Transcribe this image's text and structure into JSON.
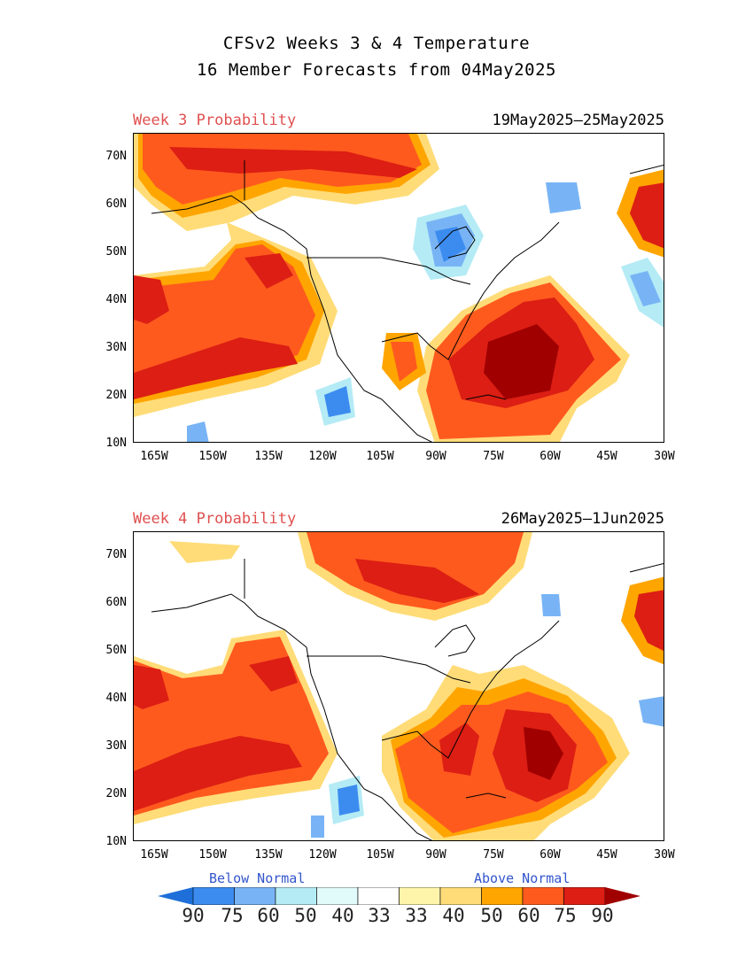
{
  "header": {
    "title_line1": "CFSv2 Weeks 3 & 4 Temperature",
    "title_line2": "16 Member Forecasts from 04May2025"
  },
  "panels": [
    {
      "label": "Week 3 Probability",
      "dates": "19May2025—25May2025"
    },
    {
      "label": "Week 4 Probability",
      "dates": "26May2025—1Jun2025"
    }
  ],
  "axes": {
    "lat_labels": [
      "70N",
      "60N",
      "50N",
      "40N",
      "30N",
      "20N",
      "10N"
    ],
    "lon_labels": [
      "165W",
      "150W",
      "135W",
      "120W",
      "105W",
      "90W",
      "75W",
      "60W",
      "45W",
      "30W"
    ]
  },
  "legend": {
    "below_label": "Below Normal",
    "above_label": "Above Normal",
    "values": [
      "90",
      "75",
      "60",
      "50",
      "40",
      "33",
      "33",
      "40",
      "50",
      "60",
      "75",
      "90"
    ],
    "colors": [
      "#1e6fd9",
      "#3c8cf0",
      "#78b4f5",
      "#b4ebf5",
      "#e1fafa",
      "#ffffff",
      "#fff5aa",
      "#ffdc78",
      "#ffa500",
      "#ff5a1e",
      "#dc1e14",
      "#a00000"
    ]
  }
}
